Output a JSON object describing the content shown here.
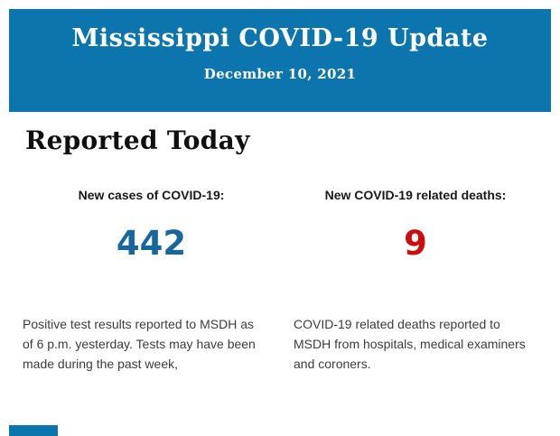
{
  "banner": {
    "title": "Mississippi COVID-19 Update",
    "date": "December 10, 2021",
    "background_color": "#0d75ad",
    "text_color": "#ffffff"
  },
  "section": {
    "heading": "Reported Today"
  },
  "stats": [
    {
      "label": "New cases of COVID-19:",
      "value": "442",
      "value_color": "#17679e",
      "description_lines": [
        "Positive test results reported to MSDH as",
        "of 6 p.m. yesterday. Tests may have been",
        "made during the past week,"
      ]
    },
    {
      "label": "New COVID-19 related deaths:",
      "value": "9",
      "value_color": "#cc0d0d",
      "description_lines": [
        "COVID-19 related deaths reported to",
        "MSDH from hospitals, medical examiners",
        "and coroners."
      ]
    }
  ],
  "footer_fragment": {
    "color": "#0d75ad"
  }
}
